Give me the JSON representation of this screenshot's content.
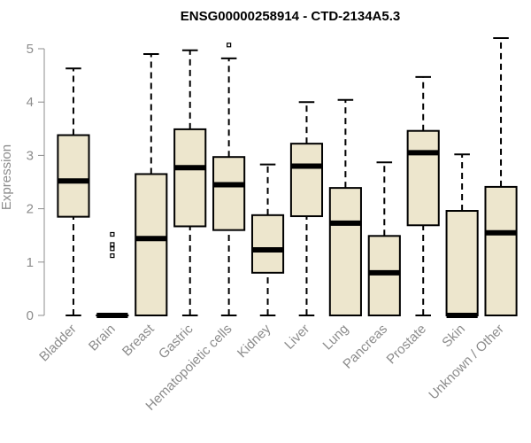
{
  "chart_data": {
    "type": "boxplot",
    "title": "ENSG00000258914 - CTD-2134A5.3",
    "xlabel": "",
    "ylabel": "Expression",
    "ylim": [
      0,
      5.3
    ],
    "yticks": [
      0,
      1,
      2,
      3,
      4,
      5
    ],
    "box_color": "#ede6cd",
    "categories": [
      "Bladder",
      "Brain",
      "Breast",
      "Gastric",
      "Hematopoietic cells",
      "Kidney",
      "Liver",
      "Lung",
      "Pancreas",
      "Prostate",
      "Skin",
      "Unknown / Other"
    ],
    "boxes": [
      {
        "min": 0,
        "q1": 1.85,
        "median": 2.52,
        "q3": 3.38,
        "max": 4.63,
        "outliers": []
      },
      {
        "min": 0,
        "q1": 0,
        "median": 0,
        "q3": 0,
        "max": 0,
        "outliers": [
          1.12,
          1.25,
          1.33,
          1.52
        ]
      },
      {
        "min": 0,
        "q1": 0,
        "median": 1.44,
        "q3": 2.65,
        "max": 4.9,
        "outliers": []
      },
      {
        "min": 0,
        "q1": 1.67,
        "median": 2.77,
        "q3": 3.49,
        "max": 4.97,
        "outliers": []
      },
      {
        "min": 0,
        "q1": 1.6,
        "median": 2.45,
        "q3": 2.97,
        "max": 4.82,
        "outliers": [
          5.07
        ]
      },
      {
        "min": 0,
        "q1": 0.8,
        "median": 1.23,
        "q3": 1.88,
        "max": 2.83,
        "outliers": []
      },
      {
        "min": 0,
        "q1": 1.86,
        "median": 2.8,
        "q3": 3.22,
        "max": 4.0,
        "outliers": []
      },
      {
        "min": 0,
        "q1": 0,
        "median": 1.73,
        "q3": 2.39,
        "max": 4.04,
        "outliers": []
      },
      {
        "min": 0,
        "q1": 0,
        "median": 0.8,
        "q3": 1.49,
        "max": 2.87,
        "outliers": []
      },
      {
        "min": 0,
        "q1": 1.69,
        "median": 3.05,
        "q3": 3.46,
        "max": 4.47,
        "outliers": []
      },
      {
        "min": 0,
        "q1": 0,
        "median": 0,
        "q3": 1.96,
        "max": 3.02,
        "outliers": []
      },
      {
        "min": 0,
        "q1": 0,
        "median": 1.55,
        "q3": 2.41,
        "max": 5.2,
        "outliers": []
      }
    ]
  }
}
